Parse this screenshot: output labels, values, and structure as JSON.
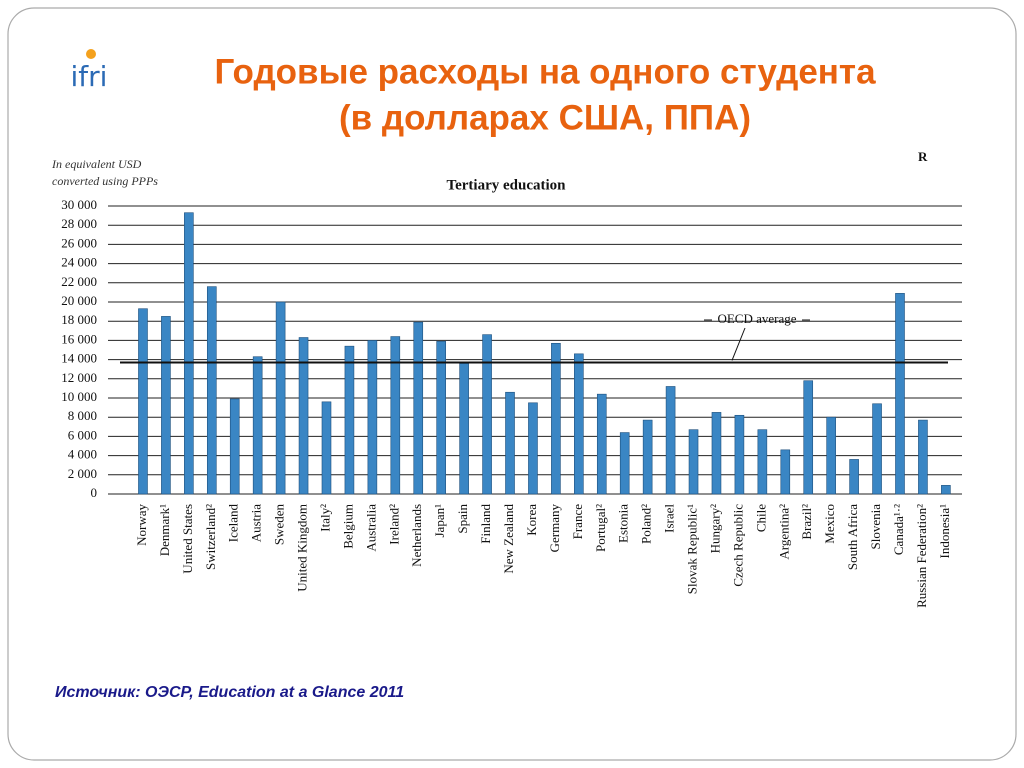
{
  "slide": {
    "title": [
      "Годовые расходы на одного студента",
      "(в долларах США, ППА)"
    ],
    "logo": "ifri",
    "source": "Источник: ОЭСР, Education at a Glance 2011",
    "corner_text": "R"
  },
  "chart_data": {
    "type": "bar",
    "title": "Tertiary education",
    "ylabel": [
      "In equivalent USD",
      "converted using PPPs"
    ],
    "categories": [
      "Norway",
      "Denmark¹",
      "United States",
      "Switzerland²",
      "Iceland",
      "Austria",
      "Sweden",
      "United Kingdom",
      "Italy²",
      "Belgium",
      "Australia",
      "Ireland²",
      "Netherlands",
      "Japan¹",
      "Spain",
      "Finland",
      "New Zealand",
      "Korea",
      "Germany",
      "France",
      "Portugal²",
      "Estonia",
      "Poland²",
      "Israel",
      "Slovak Republic¹",
      "Hungary²",
      "Czech Republic",
      "Chile",
      "Argentina²",
      "Brazil²",
      "Mexico",
      "South Africa",
      "Slovenia",
      "Canada¹·²",
      "Russian Federation²",
      "Indonesia¹"
    ],
    "values": [
      19300,
      18500,
      29300,
      21600,
      9900,
      14300,
      20000,
      16300,
      9600,
      15400,
      16000,
      16400,
      17900,
      15900,
      13600,
      16600,
      10600,
      9500,
      15700,
      14600,
      10400,
      6400,
      7700,
      11200,
      6700,
      8500,
      8200,
      6700,
      4600,
      11800,
      8000,
      3600,
      9400,
      20900,
      7700,
      900
    ],
    "color": "#3a86c4",
    "ylim": [
      0,
      30000
    ],
    "yticks": [
      0,
      {
        "value": 2000,
        "label": "2 000"
      },
      {
        "value": 4000,
        "label": "4 000"
      },
      {
        "value": 6000,
        "label": "6 000"
      },
      {
        "value": 8000,
        "label": "8 000"
      },
      {
        "value": 10000,
        "label": "10 000"
      },
      {
        "value": 12000,
        "label": "12 000"
      },
      {
        "value": 14000,
        "label": "14 000"
      },
      {
        "value": 16000,
        "label": "16 000"
      },
      {
        "value": 18000,
        "label": "18 000"
      },
      {
        "value": 20000,
        "label": "20 000"
      },
      {
        "value": 22000,
        "label": "22 000"
      },
      {
        "value": 24000,
        "label": "24 000"
      },
      {
        "value": 26000,
        "label": "26 000"
      },
      {
        "value": 28000,
        "label": "28 000"
      },
      {
        "value": 30000,
        "label": "30 000"
      }
    ],
    "grid": true,
    "reference_line": {
      "label": "OECD average",
      "value": 13700
    }
  }
}
